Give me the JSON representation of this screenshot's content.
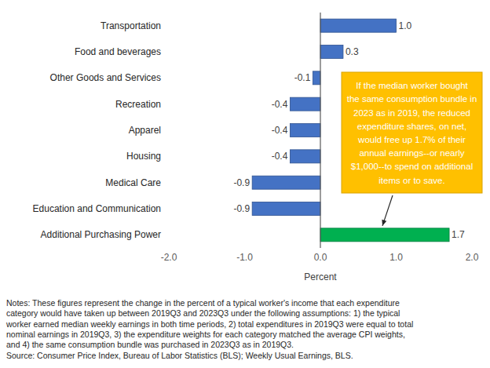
{
  "chart_data": {
    "type": "bar",
    "orientation": "horizontal",
    "categories": [
      "Transportation",
      "Food and beverages",
      "Other Goods and Services",
      "Recreation",
      "Apparel",
      "Housing",
      "Medical Care",
      "Education and Communication",
      "Additional Purchasing Power"
    ],
    "values": [
      1.0,
      0.3,
      -0.1,
      -0.4,
      -0.4,
      -0.4,
      -0.9,
      -0.9,
      1.7
    ],
    "value_labels": [
      "1.0",
      "0.3",
      "-0.1",
      "-0.4",
      "-0.4",
      "-0.4",
      "-0.9",
      "-0.9",
      "1.7"
    ],
    "colors": [
      "#4472c4",
      "#4472c4",
      "#4472c4",
      "#4472c4",
      "#4472c4",
      "#4472c4",
      "#4472c4",
      "#4472c4",
      "#00b050"
    ],
    "data_labels": true,
    "grid": false,
    "xlim": [
      -2,
      2
    ],
    "xticks": [
      {
        "value": -2,
        "label": "-2.0"
      },
      {
        "value": -1,
        "label": "-1.0"
      },
      {
        "value": 0,
        "label": "0.0"
      },
      {
        "value": 1,
        "label": "1.0"
      },
      {
        "value": 2,
        "label": "2.0"
      }
    ],
    "xlabel": "Percent",
    "annotation": [
      "If the median worker bought",
      "the same consumption bundle in",
      "2023 as in 2019, the reduced",
      "expenditure shares, on net,",
      "would free up 1.7% of their",
      "annual earnings--or nearly",
      "$1,000--to spend on additional",
      "items or to save."
    ],
    "notes": [
      "Notes: These figures represent the change in the percent of a typical worker's income that each expenditure",
      "category would have taken up between 2019Q3 and 2023Q3 under the following assumptions: 1) the typical",
      "worker earned median weekly earnings in both time periods, 2) total expenditures in 2019Q3 were equal to total",
      "nominal earnings in 2019Q3, 3) the expenditure weights for each category matched the average CPI weights,",
      "and 4) the same consumption bundle was purchased in 2023Q3 as in 2019Q3."
    ],
    "source": "Source: Consumer Price Index, Bureau of Labor Statistics (BLS); Weekly Usual Earnings, BLS."
  }
}
